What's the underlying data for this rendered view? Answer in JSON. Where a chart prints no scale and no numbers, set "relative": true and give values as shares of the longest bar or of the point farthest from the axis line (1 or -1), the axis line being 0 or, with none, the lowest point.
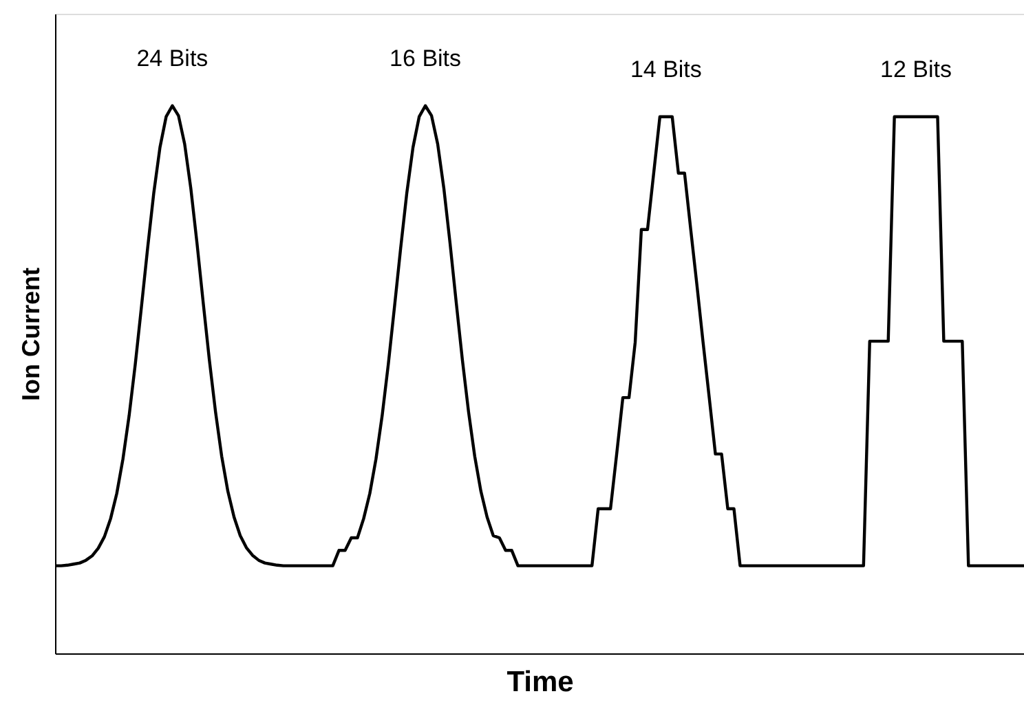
{
  "chart_data": {
    "type": "line",
    "relative": true,
    "xlabel": "Time",
    "ylabel": "Ion Current",
    "categories": [
      null,
      null,
      null,
      null,
      null,
      null,
      null,
      null,
      null,
      null,
      null,
      null,
      null,
      null,
      null,
      null,
      null,
      null,
      null,
      null,
      null,
      null,
      null,
      null,
      null,
      null,
      null,
      null,
      null,
      null,
      null,
      null,
      null,
      null,
      null,
      null,
      null,
      null,
      null,
      null,
      null,
      null,
      null,
      null,
      null,
      null,
      null,
      null,
      null,
      null,
      null,
      null,
      null,
      null,
      null,
      null,
      null,
      null,
      null,
      null,
      null,
      null,
      null,
      null,
      null,
      null,
      null,
      null,
      null,
      null,
      null,
      null,
      null,
      null,
      null,
      null,
      null,
      null,
      null,
      null,
      null,
      null,
      null,
      null,
      null,
      null,
      null,
      null,
      null,
      null,
      null,
      null,
      null,
      null,
      null,
      null,
      null,
      null,
      null,
      null,
      null,
      null,
      null,
      null,
      null,
      null,
      null,
      null,
      null,
      null,
      null,
      null,
      null,
      null,
      null,
      null,
      null,
      null,
      null,
      null,
      null,
      null,
      null,
      null,
      null,
      null,
      null,
      null,
      null,
      null,
      null,
      null,
      null,
      null,
      null,
      null,
      null,
      null,
      null,
      null,
      null,
      null,
      null,
      null,
      null,
      null,
      null,
      null,
      null,
      null,
      null,
      null,
      null,
      null,
      null,
      null,
      null,
      null
    ],
    "series": [
      {
        "color": "#000000",
        "values": [
          0.16,
          0.16,
          0.161,
          0.163,
          0.165,
          0.17,
          0.178,
          0.192,
          0.213,
          0.246,
          0.292,
          0.355,
          0.434,
          0.528,
          0.633,
          0.74,
          0.841,
          0.924,
          0.98,
          1.0,
          0.982,
          0.93,
          0.849,
          0.749,
          0.641,
          0.536,
          0.441,
          0.36,
          0.296,
          0.249,
          0.215,
          0.193,
          0.179,
          0.17,
          0.165,
          0.163,
          0.161,
          0.16,
          0.16,
          0.16,
          0.16,
          0.16,
          0.16,
          0.16,
          0.16,
          0.16,
          0.188,
          0.188,
          0.211,
          0.211,
          0.246,
          0.292,
          0.355,
          0.434,
          0.528,
          0.633,
          0.74,
          0.841,
          0.924,
          0.98,
          1.0,
          0.982,
          0.93,
          0.849,
          0.749,
          0.641,
          0.536,
          0.441,
          0.36,
          0.296,
          0.249,
          0.215,
          0.211,
          0.188,
          0.188,
          0.16,
          0.16,
          0.16,
          0.16,
          0.16,
          0.16,
          0.16,
          0.16,
          0.16,
          0.16,
          0.16,
          0.16,
          0.16,
          0.264,
          0.264,
          0.264,
          0.364,
          0.467,
          0.467,
          0.568,
          0.774,
          0.774,
          0.877,
          0.98,
          0.98,
          0.98,
          0.877,
          0.877,
          0.774,
          0.673,
          0.568,
          0.467,
          0.364,
          0.364,
          0.264,
          0.264,
          0.16,
          0.16,
          0.16,
          0.16,
          0.16,
          0.16,
          0.16,
          0.16,
          0.16,
          0.16,
          0.16,
          0.16,
          0.16,
          0.16,
          0.16,
          0.16,
          0.16,
          0.16,
          0.16,
          0.16,
          0.16,
          0.57,
          0.57,
          0.57,
          0.57,
          0.98,
          0.98,
          0.98,
          0.98,
          0.98,
          0.98,
          0.98,
          0.98,
          0.57,
          0.57,
          0.57,
          0.57,
          0.16,
          0.16,
          0.16,
          0.16,
          0.16,
          0.16,
          0.16,
          0.16,
          0.16,
          0.16
        ]
      }
    ],
    "tick_labels": false,
    "grid": false,
    "marker": "none",
    "line_style": "solid",
    "annotations": [
      "24 Bits",
      "16 Bits",
      "14 Bits",
      "12 Bits"
    ]
  }
}
